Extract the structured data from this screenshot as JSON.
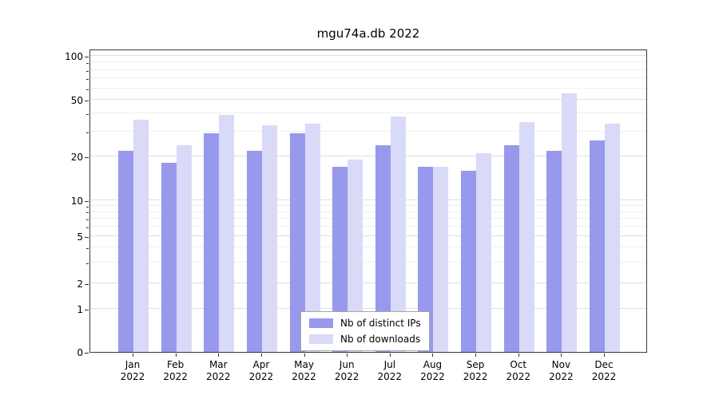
{
  "chart_data": {
    "type": "bar",
    "title": "mgu74a.db 2022",
    "categories": [
      "Jan\n2022",
      "Feb\n2022",
      "Mar\n2022",
      "Apr\n2022",
      "May\n2022",
      "Jun\n2022",
      "Jul\n2022",
      "Aug\n2022",
      "Sep\n2022",
      "Oct\n2022",
      "Nov\n2022",
      "Dec\n2022"
    ],
    "series": [
      {
        "name": "Nb of distinct IPs",
        "color": "#9898ec",
        "values": [
          22,
          18,
          29,
          22,
          29,
          17,
          24,
          17,
          16,
          24,
          22,
          26
        ]
      },
      {
        "name": "Nb of downloads",
        "color": "#d9d9f8",
        "values": [
          36,
          24,
          39,
          33,
          34,
          19,
          38,
          17,
          21,
          35,
          55,
          34
        ]
      }
    ],
    "yscale": "symlog",
    "yticks": [
      0,
      1,
      2,
      5,
      10,
      20,
      50,
      100
    ],
    "yminorticks": [
      3,
      4,
      6,
      7,
      8,
      9,
      30,
      40,
      60,
      70,
      80,
      90
    ],
    "ylim": [
      0,
      110
    ],
    "xlabel": "",
    "ylabel": "",
    "grid": true,
    "legend_position": "lower center"
  }
}
